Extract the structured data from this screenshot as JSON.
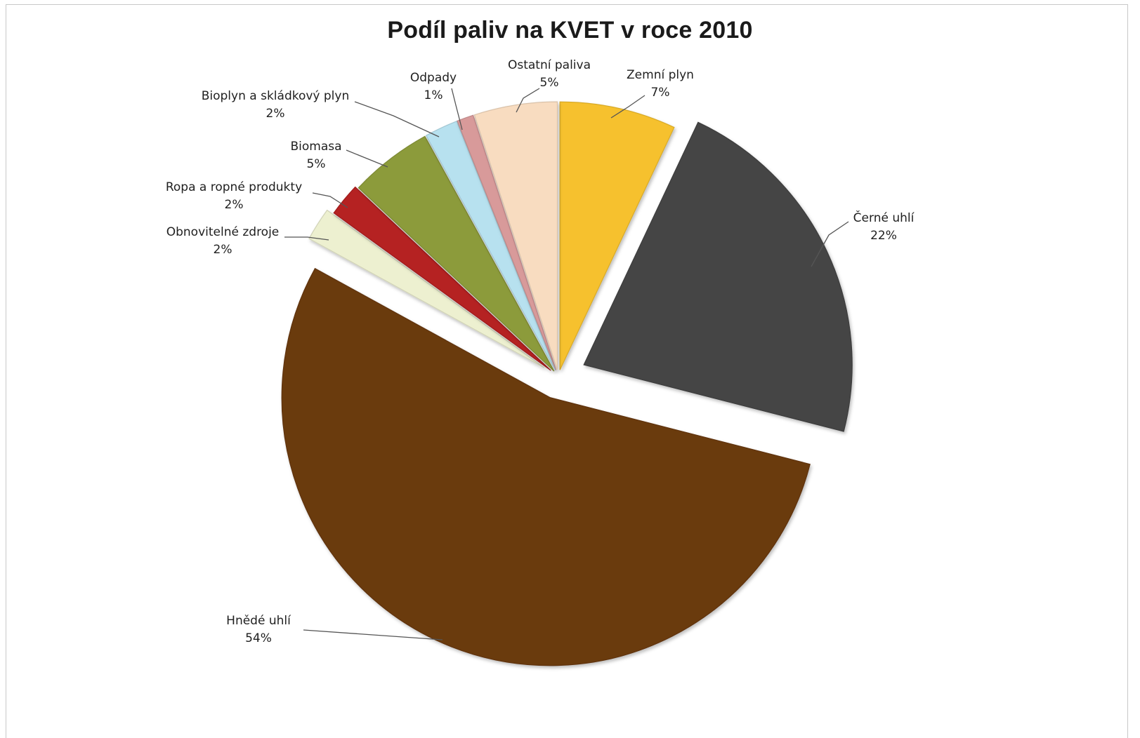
{
  "chart_data": {
    "type": "pie",
    "title": "Podíl paliv na KVET v roce 2010",
    "slices": [
      {
        "label": "Zemní plyn",
        "value": 7,
        "pct_label": "7%",
        "color": "#F6C12E"
      },
      {
        "label": "Černé uhlí",
        "value": 22,
        "pct_label": "22%",
        "color": "#454545"
      },
      {
        "label": "Hnědé uhlí",
        "value": 54,
        "pct_label": "54%",
        "color": "#6B3A10"
      },
      {
        "label": "Obnovitelné zdroje",
        "value": 2,
        "pct_label": "2%",
        "color": "#EDF0D0"
      },
      {
        "label": "Ropa a ropné produkty",
        "value": 2,
        "pct_label": "2%",
        "color": "#B52020"
      },
      {
        "label": "Biomasa",
        "value": 5,
        "pct_label": "5%",
        "color": "#8C9B3A"
      },
      {
        "label": "Bioplyn a skládkový plyn",
        "value": 2,
        "pct_label": "2%",
        "color": "#B7E1EF"
      },
      {
        "label": "Odpady",
        "value": 1,
        "pct_label": "1%",
        "color": "#D89A9A"
      },
      {
        "label": "Ostatní paliva",
        "value": 5,
        "pct_label": "5%",
        "color": "#F8DCC0"
      }
    ],
    "start_angle_deg": 0,
    "direction": "clockwise",
    "data_labels": "category name and percentage",
    "legend": "none"
  }
}
